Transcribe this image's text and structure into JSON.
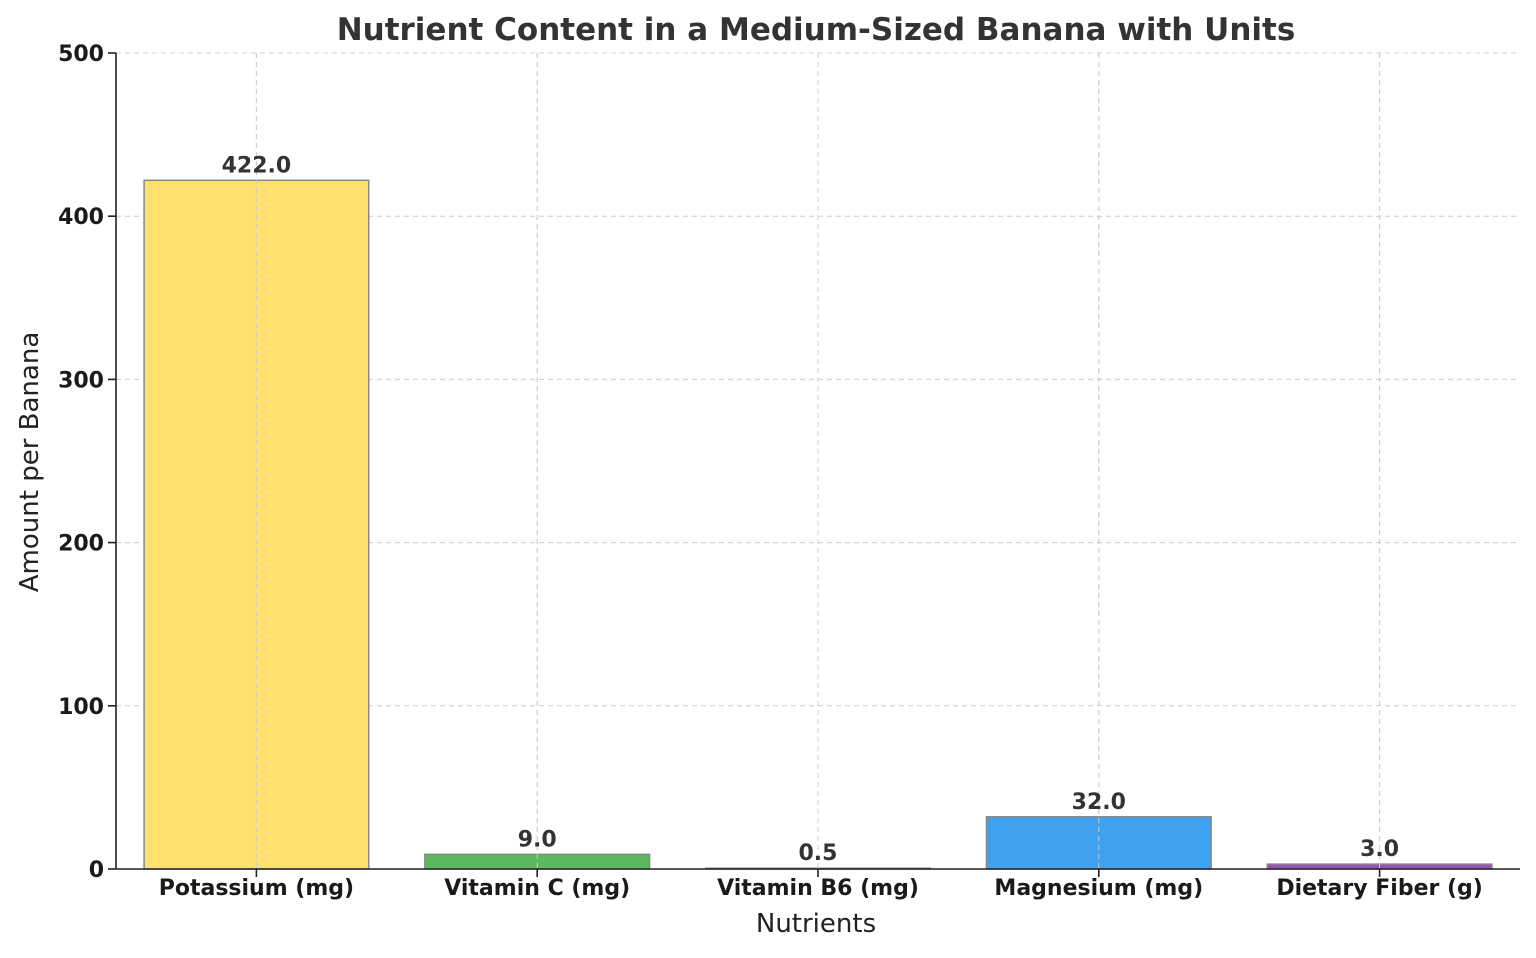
{
  "chart_data": {
    "type": "bar",
    "title": "Nutrient Content in a Medium-Sized Banana with Units",
    "xlabel": "Nutrients",
    "ylabel": "Amount per Banana",
    "categories": [
      "Potassium (mg)",
      "Vitamin C (mg)",
      "Vitamin B6 (mg)",
      "Magnesium (mg)",
      "Dietary Fiber (g)"
    ],
    "values": [
      422.0,
      9.0,
      0.5,
      32.0,
      3.0
    ],
    "value_labels": [
      "422.0",
      "9.0",
      "0.5",
      "32.0",
      "3.0"
    ],
    "colors": [
      "#FFE070",
      "#5CB85C",
      "#F5D06A",
      "#3FA2F0",
      "#9B4FBF"
    ],
    "edge_color": "#888888",
    "ylim": [
      0,
      500
    ],
    "yticks": [
      0,
      100,
      200,
      300,
      400,
      500
    ],
    "grid": true,
    "legend": "none"
  }
}
